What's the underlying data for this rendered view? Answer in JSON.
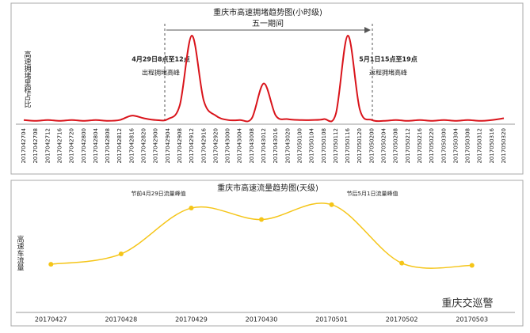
{
  "chart_data": [
    {
      "type": "line",
      "title": "重庆市高速拥堵趋势图(小时级)",
      "subtitle": "五一期间",
      "y_label": "高速拥堵里程占比",
      "annotations": [
        "4月29日8点至12点",
        "出程拥堵高峰",
        "5月1日15点至19点",
        "返程拥堵高峰"
      ],
      "categories": [
        "2017042704",
        "2017042708",
        "2017042712",
        "2017042716",
        "2017042720",
        "2017042800",
        "2017042804",
        "2017042808",
        "2017042812",
        "2017042816",
        "2017042820",
        "2017042900",
        "2017042904",
        "2017042908",
        "2017042912",
        "2017042916",
        "2017042920",
        "2017043000",
        "2017043004",
        "2017043008",
        "2017043012",
        "2017043016",
        "2017043020",
        "2017050100",
        "2017050104",
        "2017050108",
        "2017050112",
        "2017050116",
        "2017050120",
        "2017050200",
        "2017050204",
        "2017050208",
        "2017050212",
        "2017050216",
        "2017050220",
        "2017050300",
        "2017050304",
        "2017050308",
        "2017050312",
        "2017050316",
        "2017050320"
      ],
      "values": [
        3,
        2,
        3,
        2,
        3,
        2,
        3,
        2,
        3,
        8,
        5,
        3,
        4,
        20,
        100,
        25,
        8,
        3,
        3,
        5,
        45,
        8,
        4,
        3,
        3,
        4,
        10,
        100,
        15,
        3,
        2,
        3,
        2,
        3,
        2,
        3,
        2,
        3,
        2,
        3,
        5
      ],
      "color": "#d9141b",
      "ylim": [
        0,
        100
      ]
    },
    {
      "type": "line",
      "title": "重庆市高速流量趋势图(天级)",
      "y_label": "高速车流量",
      "annotations": [
        "节前4月29日流量峰值",
        "节后5月1日流量峰值"
      ],
      "categories": [
        "20170427",
        "20170428",
        "20170429",
        "20170430",
        "20170501",
        "20170502",
        "20170503"
      ],
      "values": [
        42,
        51,
        91,
        81,
        94,
        43,
        41
      ],
      "color": "#f5c518",
      "markers": true,
      "ylim": [
        0,
        100
      ]
    }
  ],
  "watermark": "重庆交巡警"
}
